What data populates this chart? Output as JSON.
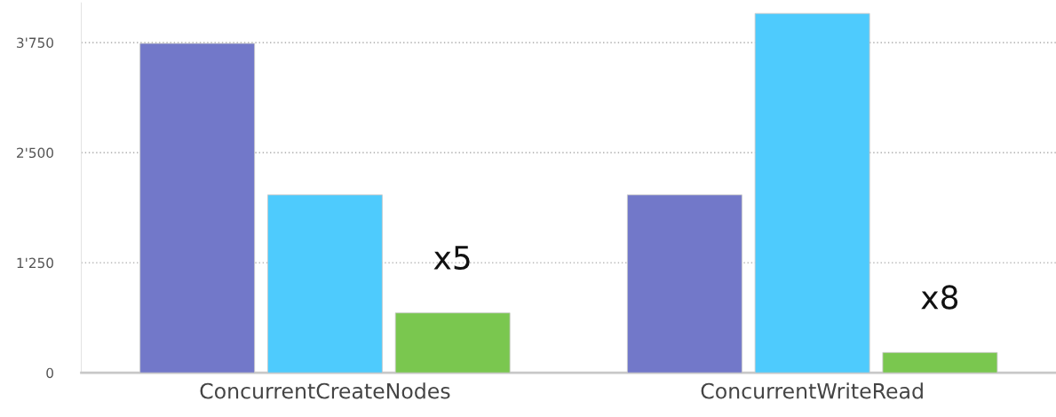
{
  "chart_data": {
    "type": "bar",
    "categories": [
      "ConcurrentCreateNodes",
      "ConcurrentWriteRead"
    ],
    "series": [
      {
        "color": "#7278c9",
        "values": [
          3740,
          2020
        ]
      },
      {
        "color": "#4ecbfd",
        "values": [
          2020,
          4080
        ]
      },
      {
        "color": "#7ac74f",
        "values": [
          680,
          230
        ]
      }
    ],
    "ylim": [
      0,
      4200
    ],
    "yticks": [
      0,
      {
        "value": 1250,
        "label": "1'250"
      },
      {
        "value": 2500,
        "label": "2'500"
      },
      {
        "value": 3750,
        "label": "3'750"
      }
    ],
    "grid": "y",
    "annotations": [
      "x5",
      "x8"
    ]
  }
}
